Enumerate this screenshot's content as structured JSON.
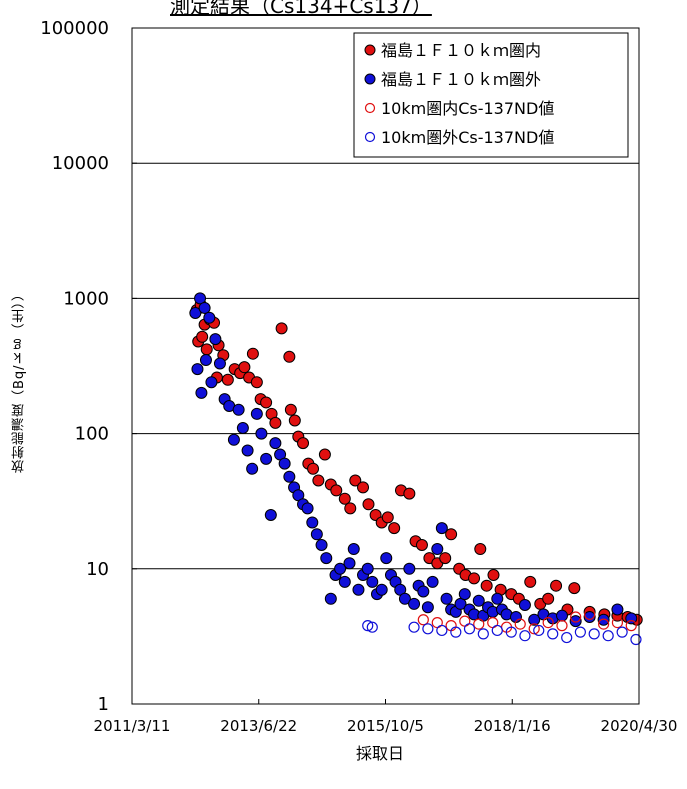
{
  "chart_data": {
    "type": "scatter",
    "title": "測定結果（Cs134+Cs137）",
    "xlabel": "採取日",
    "ylabel": "放射能濃度（Bq/ｋｇ（生））",
    "yscale": "log",
    "ylim": [
      1,
      100000
    ],
    "y_ticks": [
      "1",
      "10",
      "100",
      "1000",
      "10000",
      "100000"
    ],
    "x_ticks": [
      "2011/3/11",
      "2013/6/22",
      "2015/10/5",
      "2018/1/16",
      "2020/4/30"
    ],
    "xlim": [
      "2011-03-11",
      "2020-04-30"
    ],
    "grid": "horizontal",
    "legend_position": "top-right",
    "legend": [
      {
        "label": "福島１Ｆ１０ｋｍ圏内",
        "marker": "filled-circle",
        "color": "#e01010"
      },
      {
        "label": "福島１Ｆ１０ｋｍ圏外",
        "marker": "filled-circle",
        "color": "#1010d8"
      },
      {
        "label": "10km圏内Cs-137ND値",
        "marker": "open-circle",
        "color": "#e01010"
      },
      {
        "label": "10km圏外Cs-137ND値",
        "marker": "open-circle",
        "color": "#1010d8"
      }
    ],
    "series": [
      {
        "name": "福島１Ｆ１０ｋｍ圏内",
        "color": "#e01010",
        "style": "filled",
        "points": [
          [
            "2012-05-10",
            820
          ],
          [
            "2012-06-05",
            900
          ],
          [
            "2012-07-01",
            640
          ],
          [
            "2012-08-05",
            700
          ],
          [
            "2012-05-20",
            480
          ],
          [
            "2012-06-15",
            520
          ],
          [
            "2012-07-15",
            420
          ],
          [
            "2012-09-01",
            660
          ],
          [
            "2012-10-01",
            450
          ],
          [
            "2012-11-01",
            380
          ],
          [
            "2012-09-20",
            260
          ],
          [
            "2012-12-01",
            250
          ],
          [
            "2013-01-15",
            300
          ],
          [
            "2013-02-20",
            280
          ],
          [
            "2013-03-20",
            310
          ],
          [
            "2013-04-20",
            260
          ],
          [
            "2013-05-15",
            390
          ],
          [
            "2013-06-10",
            240
          ],
          [
            "2013-07-05",
            180
          ],
          [
            "2013-08-10",
            170
          ],
          [
            "2013-09-15",
            140
          ],
          [
            "2013-10-10",
            120
          ],
          [
            "2013-11-20",
            600
          ],
          [
            "2014-01-10",
            370
          ],
          [
            "2014-01-20",
            150
          ],
          [
            "2014-02-15",
            125
          ],
          [
            "2014-03-10",
            95
          ],
          [
            "2014-04-10",
            85
          ],
          [
            "2014-05-15",
            60
          ],
          [
            "2014-06-15",
            55
          ],
          [
            "2014-07-20",
            45
          ],
          [
            "2014-09-01",
            70
          ],
          [
            "2014-10-10",
            42
          ],
          [
            "2014-11-15",
            38
          ],
          [
            "2015-01-10",
            33
          ],
          [
            "2015-02-15",
            28
          ],
          [
            "2015-03-20",
            45
          ],
          [
            "2015-05-10",
            40
          ],
          [
            "2015-06-15",
            30
          ],
          [
            "2015-08-01",
            25
          ],
          [
            "2015-09-10",
            22
          ],
          [
            "2015-10-20",
            24
          ],
          [
            "2015-12-01",
            20
          ],
          [
            "2016-01-15",
            38
          ],
          [
            "2016-03-10",
            36
          ],
          [
            "2016-04-20",
            16
          ],
          [
            "2016-06-01",
            15
          ],
          [
            "2016-07-20",
            12
          ],
          [
            "2016-09-10",
            11
          ],
          [
            "2016-11-01",
            12
          ],
          [
            "2016-12-10",
            18
          ],
          [
            "2017-02-01",
            10
          ],
          [
            "2017-03-15",
            9
          ],
          [
            "2017-05-10",
            8.5
          ],
          [
            "2017-06-20",
            14
          ],
          [
            "2017-08-01",
            7.5
          ],
          [
            "2017-09-15",
            9
          ],
          [
            "2017-11-01",
            7
          ],
          [
            "2018-01-10",
            6.5
          ],
          [
            "2018-03-01",
            6
          ],
          [
            "2018-05-15",
            8
          ],
          [
            "2018-07-20",
            5.5
          ],
          [
            "2018-09-10",
            6
          ],
          [
            "2018-11-01",
            7.5
          ],
          [
            "2019-01-15",
            5
          ],
          [
            "2019-03-01",
            7.2
          ],
          [
            "2019-06-10",
            4.8
          ],
          [
            "2019-09-15",
            4.6
          ],
          [
            "2019-12-10",
            4.5
          ],
          [
            "2020-02-15",
            4.4
          ],
          [
            "2020-04-15",
            4.2
          ]
        ]
      },
      {
        "name": "福島１Ｆ１０ｋｍ圏外",
        "color": "#1010d8",
        "style": "filled",
        "points": [
          [
            "2012-05-01",
            780
          ],
          [
            "2012-06-01",
            1000
          ],
          [
            "2012-07-01",
            850
          ],
          [
            "2012-08-01",
            720
          ],
          [
            "2012-05-15",
            300
          ],
          [
            "2012-06-10",
            200
          ],
          [
            "2012-07-10",
            350
          ],
          [
            "2012-08-15",
            240
          ],
          [
            "2012-09-10",
            500
          ],
          [
            "2012-10-10",
            330
          ],
          [
            "2012-11-10",
            180
          ],
          [
            "2012-12-10",
            160
          ],
          [
            "2013-01-10",
            90
          ],
          [
            "2013-02-10",
            150
          ],
          [
            "2013-03-10",
            110
          ],
          [
            "2013-04-10",
            75
          ],
          [
            "2013-05-10",
            55
          ],
          [
            "2013-06-10",
            140
          ],
          [
            "2013-07-10",
            100
          ],
          [
            "2013-08-10",
            65
          ],
          [
            "2013-09-10",
            25
          ],
          [
            "2013-10-10",
            85
          ],
          [
            "2013-11-10",
            70
          ],
          [
            "2013-12-10",
            60
          ],
          [
            "2014-01-10",
            48
          ],
          [
            "2014-02-10",
            40
          ],
          [
            "2014-03-10",
            35
          ],
          [
            "2014-04-10",
            30
          ],
          [
            "2014-05-10",
            28
          ],
          [
            "2014-06-10",
            22
          ],
          [
            "2014-07-10",
            18
          ],
          [
            "2014-08-10",
            15
          ],
          [
            "2014-09-10",
            12
          ],
          [
            "2014-10-10",
            6
          ],
          [
            "2014-11-10",
            9
          ],
          [
            "2014-12-10",
            10
          ],
          [
            "2015-01-10",
            8
          ],
          [
            "2015-02-10",
            11
          ],
          [
            "2015-03-10",
            14
          ],
          [
            "2015-04-10",
            7
          ],
          [
            "2015-05-10",
            9
          ],
          [
            "2015-06-10",
            10
          ],
          [
            "2015-07-10",
            8
          ],
          [
            "2015-08-10",
            6.5
          ],
          [
            "2015-09-10",
            7
          ],
          [
            "2015-10-10",
            12
          ],
          [
            "2015-11-10",
            9
          ],
          [
            "2015-12-10",
            8
          ],
          [
            "2016-01-10",
            7
          ],
          [
            "2016-02-10",
            6
          ],
          [
            "2016-03-10",
            10
          ],
          [
            "2016-04-10",
            5.5
          ],
          [
            "2016-05-10",
            7.5
          ],
          [
            "2016-06-10",
            6.8
          ],
          [
            "2016-07-10",
            5.2
          ],
          [
            "2016-08-10",
            8
          ],
          [
            "2016-09-10",
            14
          ],
          [
            "2016-10-10",
            20
          ],
          [
            "2016-11-10",
            6
          ],
          [
            "2016-12-10",
            5
          ],
          [
            "2017-01-10",
            4.8
          ],
          [
            "2017-02-10",
            5.5
          ],
          [
            "2017-03-10",
            6.5
          ],
          [
            "2017-04-10",
            5
          ],
          [
            "2017-05-10",
            4.6
          ],
          [
            "2017-06-10",
            5.8
          ],
          [
            "2017-07-10",
            4.5
          ],
          [
            "2017-08-10",
            5.2
          ],
          [
            "2017-09-10",
            4.8
          ],
          [
            "2017-10-10",
            6
          ],
          [
            "2017-11-10",
            5
          ],
          [
            "2017-12-10",
            4.6
          ],
          [
            "2018-02-10",
            4.4
          ],
          [
            "2018-04-10",
            5.4
          ],
          [
            "2018-06-10",
            4.2
          ],
          [
            "2018-08-10",
            4.6
          ],
          [
            "2018-10-10",
            4.3
          ],
          [
            "2018-12-10",
            4.5
          ],
          [
            "2019-03-10",
            4.1
          ],
          [
            "2019-06-10",
            4.4
          ],
          [
            "2019-09-10",
            4.2
          ],
          [
            "2019-12-10",
            5
          ],
          [
            "2020-03-10",
            4.3
          ]
        ]
      },
      {
        "name": "10km圏内Cs-137ND値",
        "color": "#e01010",
        "style": "open",
        "points": [
          [
            "2016-06-10",
            4.2
          ],
          [
            "2016-09-10",
            4.0
          ],
          [
            "2016-12-10",
            3.8
          ],
          [
            "2017-03-10",
            4.1
          ],
          [
            "2017-06-10",
            3.9
          ],
          [
            "2017-09-10",
            4.0
          ],
          [
            "2017-12-10",
            3.7
          ],
          [
            "2018-03-10",
            3.9
          ],
          [
            "2018-06-10",
            3.6
          ],
          [
            "2018-09-10",
            4.0
          ],
          [
            "2018-12-10",
            3.8
          ],
          [
            "2019-03-10",
            4.4
          ],
          [
            "2019-06-10",
            4.6
          ],
          [
            "2019-09-10",
            3.9
          ],
          [
            "2019-12-10",
            4.0
          ],
          [
            "2020-03-10",
            3.8
          ]
        ]
      },
      {
        "name": "10km圏外Cs-137ND値",
        "color": "#1010d8",
        "style": "open",
        "points": [
          [
            "2015-06-10",
            3.8
          ],
          [
            "2015-07-10",
            3.7
          ],
          [
            "2016-04-10",
            3.7
          ],
          [
            "2016-07-10",
            3.6
          ],
          [
            "2016-10-10",
            3.5
          ],
          [
            "2017-01-10",
            3.4
          ],
          [
            "2017-04-10",
            3.6
          ],
          [
            "2017-07-10",
            3.3
          ],
          [
            "2017-10-10",
            3.5
          ],
          [
            "2018-01-10",
            3.4
          ],
          [
            "2018-04-10",
            3.2
          ],
          [
            "2018-07-10",
            3.5
          ],
          [
            "2018-10-10",
            3.3
          ],
          [
            "2019-01-10",
            3.1
          ],
          [
            "2019-04-10",
            3.4
          ],
          [
            "2019-07-10",
            3.3
          ],
          [
            "2019-10-10",
            3.2
          ],
          [
            "2020-01-10",
            3.4
          ],
          [
            "2020-04-10",
            3.0
          ]
        ]
      }
    ]
  }
}
